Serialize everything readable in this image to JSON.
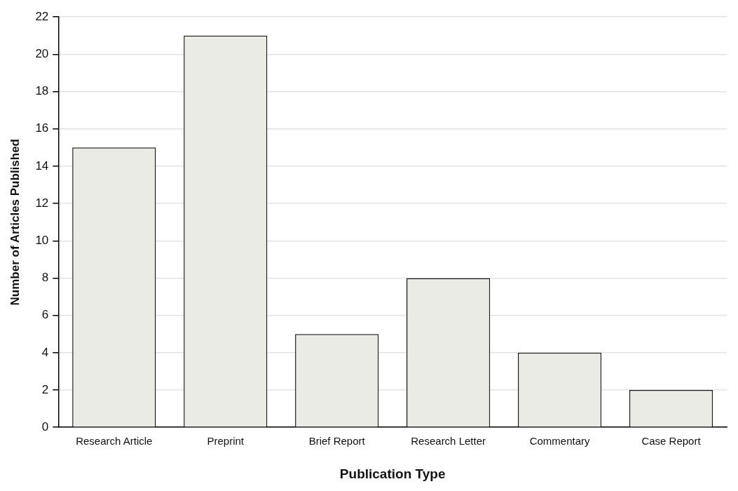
{
  "chart_data": {
    "type": "bar",
    "xlabel": "Publication Type",
    "ylabel": "Number of Articles Published",
    "categories": [
      "Research Article",
      "Preprint",
      "Brief Report",
      "Research Letter",
      "Commentary",
      "Case Report"
    ],
    "values": [
      15,
      21,
      5,
      8,
      4,
      2
    ],
    "color": "#ebebe6",
    "ylim": [
      0,
      22
    ],
    "yticks": [
      0,
      2,
      4,
      6,
      8,
      10,
      12,
      14,
      16,
      18,
      20,
      22
    ],
    "grid": "y",
    "legend": false
  }
}
